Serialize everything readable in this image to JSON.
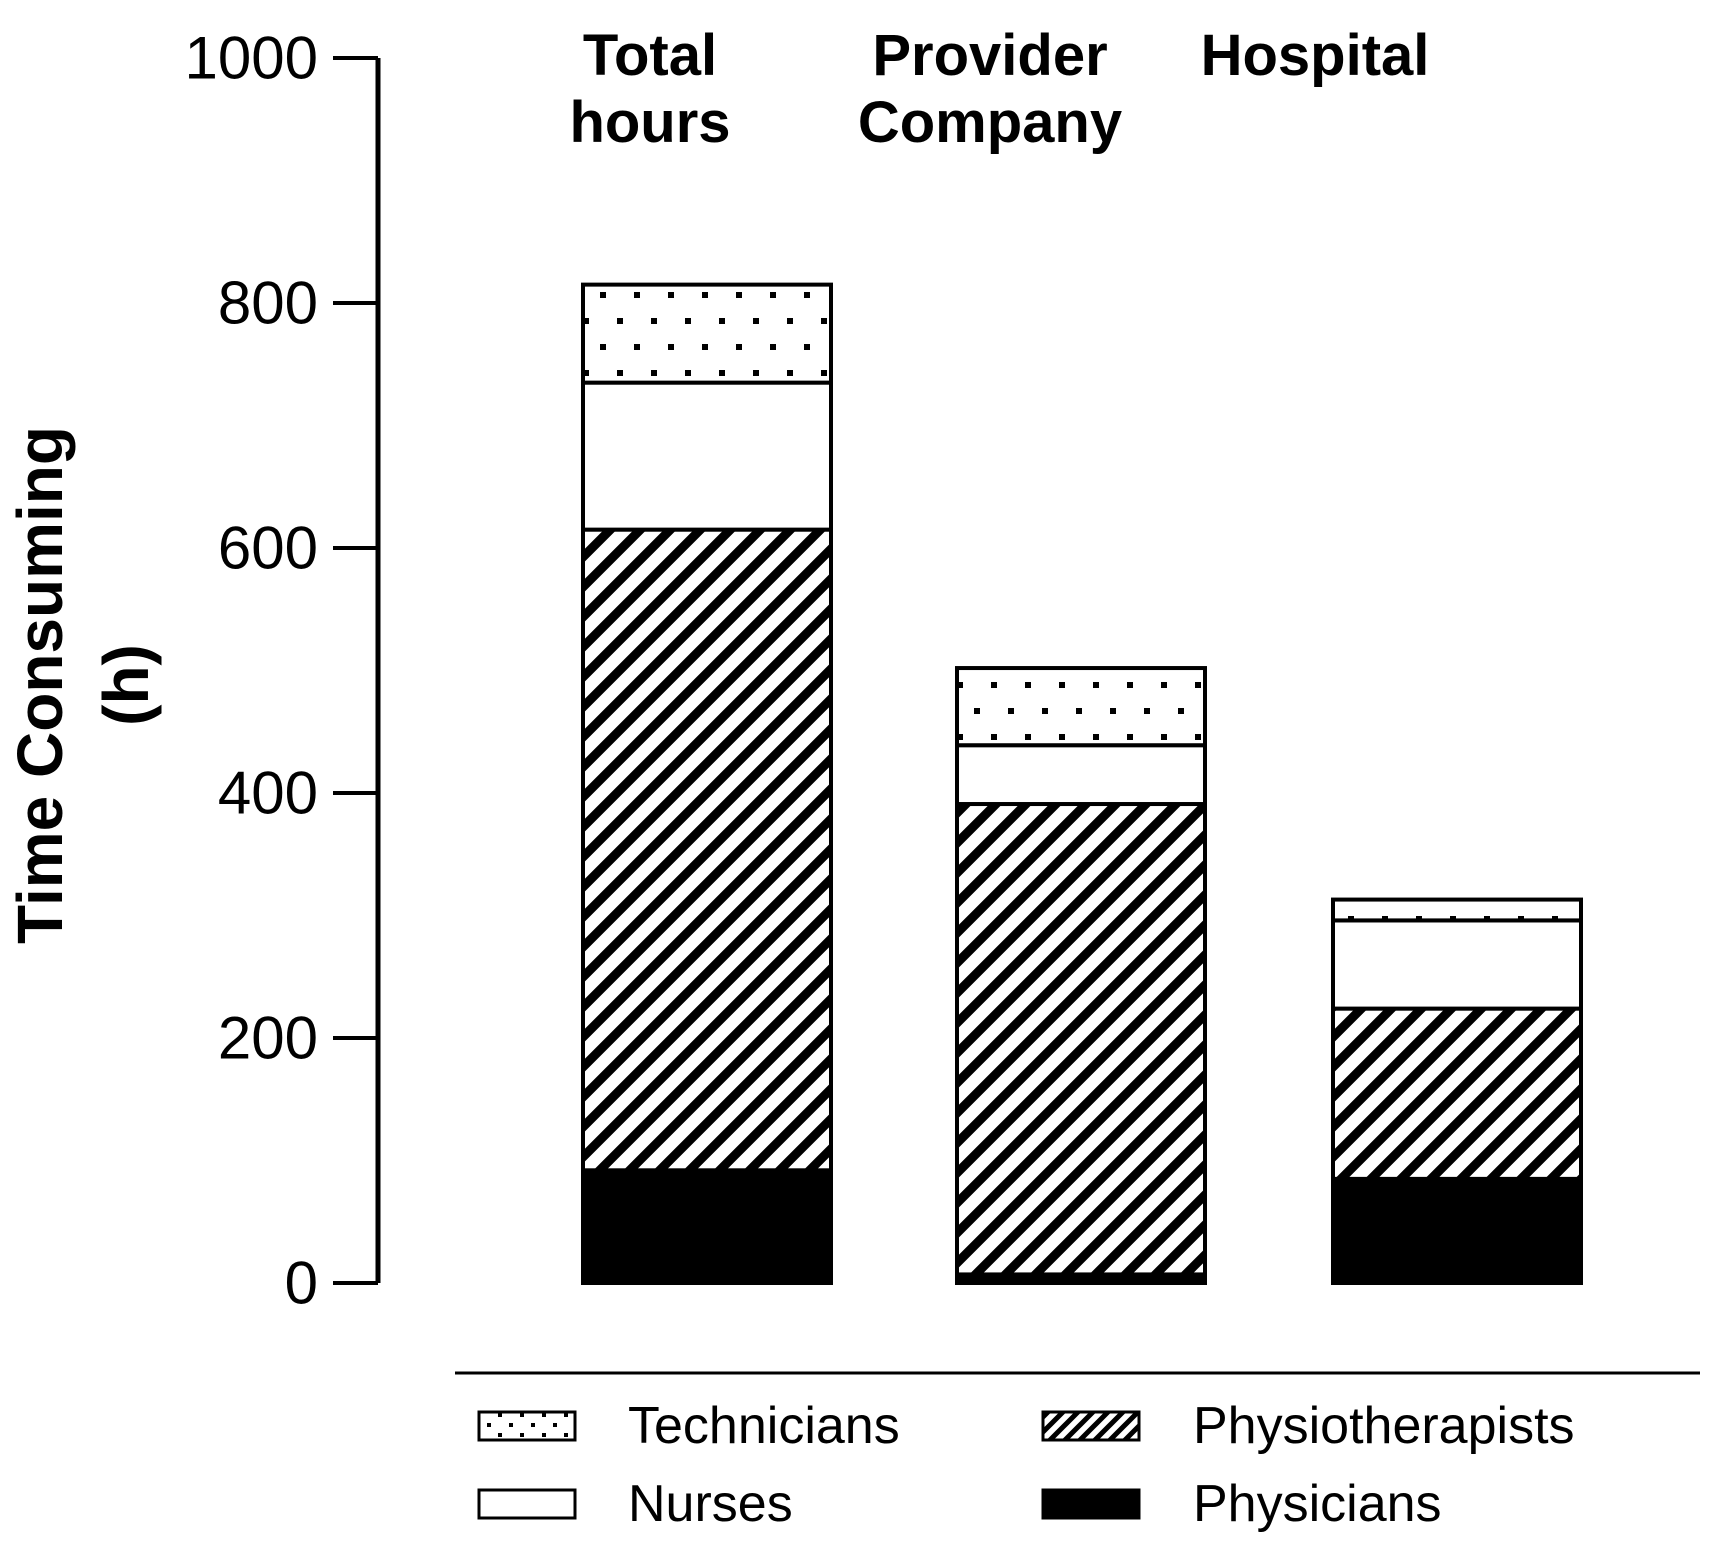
{
  "figure": {
    "kind": "stacked-bar-figure",
    "background": "#ffffff"
  },
  "colors": {
    "ink": "#000000",
    "background": "#ffffff"
  },
  "y_axis": {
    "label_lines": [
      "Time Consuming",
      "(h)"
    ],
    "tick_labels": [
      "1000",
      "800",
      "600",
      "400",
      "200",
      "0"
    ],
    "tick_values": [
      1000,
      800,
      600,
      400,
      200,
      0
    ],
    "min": 0,
    "max": 1000
  },
  "headers": [
    {
      "lines": [
        "Total",
        "hours"
      ]
    },
    {
      "lines": [
        "Provider",
        "Company"
      ]
    },
    {
      "lines": [
        "Hospital"
      ]
    }
  ],
  "legend": {
    "items": [
      {
        "label": "Technicians",
        "pattern": "dots"
      },
      {
        "label": "Nurses",
        "pattern": "solid-white"
      },
      {
        "label": "Physiotherapists",
        "pattern": "hatch"
      },
      {
        "label": "Physicians",
        "pattern": "solid-black"
      }
    ]
  },
  "chart_data": {
    "type": "bar",
    "stacked": true,
    "title": "",
    "xlabel": "",
    "ylabel": "Time Consuming (h)",
    "ylim": [
      0,
      1000
    ],
    "grid": false,
    "legend_position": "bottom",
    "categories": [
      "Total hours",
      "Provider Company",
      "Hospital"
    ],
    "series": [
      {
        "name": "Physicians",
        "pattern": "solid-black",
        "values": [
          92,
          7,
          85
        ]
      },
      {
        "name": "Physiotherapists",
        "pattern": "hatch",
        "values": [
          523,
          384,
          139
        ]
      },
      {
        "name": "Nurses",
        "pattern": "solid-white",
        "values": [
          120,
          48,
          72
        ]
      },
      {
        "name": "Technicians",
        "pattern": "dots",
        "values": [
          80,
          63,
          17
        ]
      }
    ],
    "stack_totals": [
      815,
      502,
      313
    ]
  }
}
